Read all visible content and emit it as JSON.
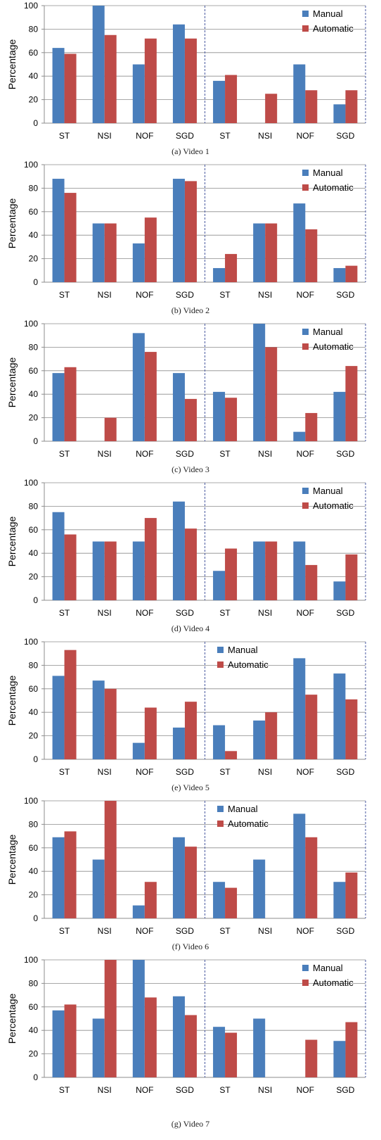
{
  "colors": {
    "manual": "#4a7ebb",
    "automatic": "#be4b48",
    "grid": "#8c8c8c",
    "axis": "#8c8c8c",
    "divider": "#4a5aa0"
  },
  "chart_data": [
    {
      "type": "bar",
      "caption": "(a) Video 1",
      "categories": [
        "ST",
        "NSI",
        "NOF",
        "SGD",
        "ST",
        "NSI",
        "NOF",
        "SGD"
      ],
      "series": [
        {
          "name": "Manual",
          "values": [
            64,
            100,
            50,
            84,
            36,
            0,
            50,
            16
          ]
        },
        {
          "name": "Automatic",
          "values": [
            59,
            75,
            72,
            72,
            41,
            25,
            28,
            28
          ]
        }
      ],
      "ylabel": "Percentage",
      "ylim": [
        0,
        100
      ],
      "yticks": [
        0,
        20,
        40,
        60,
        80,
        100
      ],
      "grid": true,
      "legend_position": "top-right"
    },
    {
      "type": "bar",
      "caption": "(b) Video 2",
      "categories": [
        "ST",
        "NSI",
        "NOF",
        "SGD",
        "ST",
        "NSI",
        "NOF",
        "SGD"
      ],
      "series": [
        {
          "name": "Manual",
          "values": [
            88,
            50,
            33,
            88,
            12,
            50,
            67,
            12
          ]
        },
        {
          "name": "Automatic",
          "values": [
            76,
            50,
            55,
            86,
            24,
            50,
            45,
            14
          ]
        }
      ],
      "ylabel": "Percentage",
      "ylim": [
        0,
        100
      ],
      "yticks": [
        0,
        20,
        40,
        60,
        80,
        100
      ],
      "grid": true,
      "legend_position": "top-right"
    },
    {
      "type": "bar",
      "caption": "(c) Video 3",
      "categories": [
        "ST",
        "NSI",
        "NOF",
        "SGD",
        "ST",
        "NSI",
        "NOF",
        "SGD"
      ],
      "series": [
        {
          "name": "Manual",
          "values": [
            58,
            0,
            92,
            58,
            42,
            100,
            8,
            42
          ]
        },
        {
          "name": "Automatic",
          "values": [
            63,
            20,
            76,
            36,
            37,
            80,
            24,
            64
          ]
        }
      ],
      "ylabel": "Percentage",
      "ylim": [
        0,
        100
      ],
      "yticks": [
        0,
        20,
        40,
        60,
        80,
        100
      ],
      "grid": true,
      "legend_position": "top-right"
    },
    {
      "type": "bar",
      "caption": "(d) Video 4",
      "categories": [
        "ST",
        "NSI",
        "NOF",
        "SGD",
        "ST",
        "NSI",
        "NOF",
        "SGD"
      ],
      "series": [
        {
          "name": "Manual",
          "values": [
            75,
            50,
            50,
            84,
            25,
            50,
            50,
            16
          ]
        },
        {
          "name": "Automatic",
          "values": [
            56,
            50,
            70,
            61,
            44,
            50,
            30,
            39
          ]
        }
      ],
      "ylabel": "Percentage",
      "ylim": [
        0,
        100
      ],
      "yticks": [
        0,
        20,
        40,
        60,
        80,
        100
      ],
      "grid": true,
      "legend_position": "top-right"
    },
    {
      "type": "bar",
      "caption": "(e) Video 5",
      "categories": [
        "ST",
        "NSI",
        "NOF",
        "SGD",
        "ST",
        "NSI",
        "NOF",
        "SGD"
      ],
      "series": [
        {
          "name": "Manual",
          "values": [
            71,
            67,
            14,
            27,
            29,
            33,
            86,
            73
          ]
        },
        {
          "name": "Automatic",
          "values": [
            93,
            60,
            44,
            49,
            7,
            40,
            55,
            51
          ]
        }
      ],
      "ylabel": "Percentage",
      "ylim": [
        0,
        100
      ],
      "yticks": [
        0,
        20,
        40,
        60,
        80,
        100
      ],
      "grid": true,
      "legend_position": "top-center"
    },
    {
      "type": "bar",
      "caption": "(f) Video 6",
      "categories": [
        "ST",
        "NSI",
        "NOF",
        "SGD",
        "ST",
        "NSI",
        "NOF",
        "SGD"
      ],
      "series": [
        {
          "name": "Manual",
          "values": [
            69,
            50,
            11,
            69,
            31,
            50,
            89,
            31
          ]
        },
        {
          "name": "Automatic",
          "values": [
            74,
            100,
            31,
            61,
            26,
            0,
            69,
            39
          ]
        }
      ],
      "ylabel": "Percentage",
      "ylim": [
        0,
        100
      ],
      "yticks": [
        0,
        20,
        40,
        60,
        80,
        100
      ],
      "grid": true,
      "legend_position": "top-center"
    },
    {
      "type": "bar",
      "caption": "(g) Video 7",
      "categories": [
        "ST",
        "NSI",
        "NOF",
        "SGD",
        "ST",
        "NSI",
        "NOF",
        "SGD"
      ],
      "series": [
        {
          "name": "Manual",
          "values": [
            57,
            50,
            100,
            69,
            43,
            50,
            0,
            31
          ]
        },
        {
          "name": "Automatic",
          "values": [
            62,
            100,
            68,
            53,
            38,
            0,
            32,
            47
          ]
        }
      ],
      "ylabel": "Percentage",
      "ylim": [
        0,
        100
      ],
      "yticks": [
        0,
        20,
        40,
        60,
        80,
        100
      ],
      "grid": true,
      "legend_position": "top-right"
    }
  ]
}
